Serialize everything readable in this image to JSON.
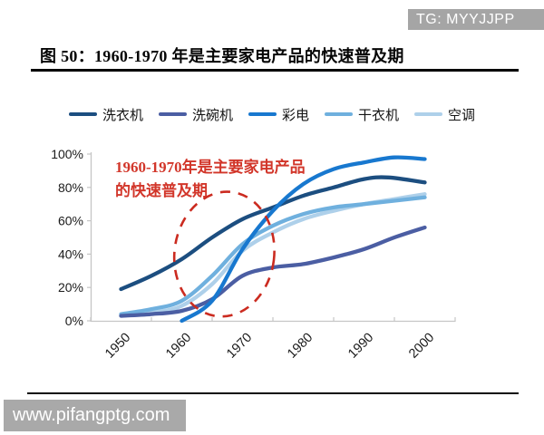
{
  "header": {
    "tg_badge": "TG: MYYJJPP",
    "title": "图 50：1960-1970 年是主要家电产品的快速普及期"
  },
  "annotation": {
    "line1": "1960-1970年是主要家电产品",
    "line2": "的快速普及期",
    "text_color": "#d2362a",
    "circle_color": "#cb2b20"
  },
  "watermark": "www.pifangptg.com",
  "colors": {
    "badge_bg": "#a5a5a5",
    "watermark_bg": "#a9a9a9",
    "axis_line": "#c6c6c6",
    "axis_text": "#1b1b1b"
  },
  "chart_data": {
    "type": "line",
    "title": "",
    "xlabel": "",
    "ylabel": "",
    "xlim": [
      1950,
      2000
    ],
    "ylim": [
      0,
      100
    ],
    "grid": false,
    "legend_position": "top",
    "x_ticks": [
      "1950",
      "1960",
      "1970",
      "1980",
      "1990",
      "2000"
    ],
    "y_ticks": [
      "0%",
      "20%",
      "40%",
      "60%",
      "80%",
      "100%"
    ],
    "series": [
      {
        "name": "洗衣机",
        "color": "#1c4e80",
        "x": [
          1950,
          1955,
          1960,
          1965,
          1970,
          1975,
          1980,
          1985,
          1990,
          1994,
          2000
        ],
        "values": [
          19,
          27,
          37,
          50,
          61,
          68,
          75,
          80,
          85,
          86,
          83
        ]
      },
      {
        "name": "洗碗机",
        "color": "#4b5ea3",
        "x": [
          1950,
          1955,
          1960,
          1965,
          1970,
          1975,
          1980,
          1985,
          1990,
          1995,
          2000
        ],
        "values": [
          3,
          4,
          6,
          13,
          27,
          32,
          34,
          38,
          43,
          50,
          56
        ]
      },
      {
        "name": "彩电",
        "color": "#1878cf",
        "x": [
          1960,
          1965,
          1970,
          1975,
          1980,
          1985,
          1990,
          1995,
          2000
        ],
        "values": [
          0,
          12,
          43,
          66,
          82,
          91,
          95,
          98,
          97
        ]
      },
      {
        "name": "干衣机",
        "color": "#6fb0de",
        "x": [
          1950,
          1955,
          1960,
          1965,
          1970,
          1975,
          1980,
          1985,
          1990,
          1995,
          2000
        ],
        "values": [
          4,
          7,
          12,
          27,
          46,
          57,
          64,
          68,
          70,
          72,
          74
        ]
      },
      {
        "name": "空调",
        "color": "#aed0ea",
        "x": [
          1950,
          1955,
          1960,
          1965,
          1970,
          1975,
          1980,
          1985,
          1990,
          1995,
          2000
        ],
        "values": [
          3,
          5,
          9,
          22,
          42,
          53,
          61,
          66,
          70,
          73,
          76
        ]
      }
    ],
    "annotation_circle": {
      "x_center_year": 1967,
      "y_center_value": 40
    }
  }
}
